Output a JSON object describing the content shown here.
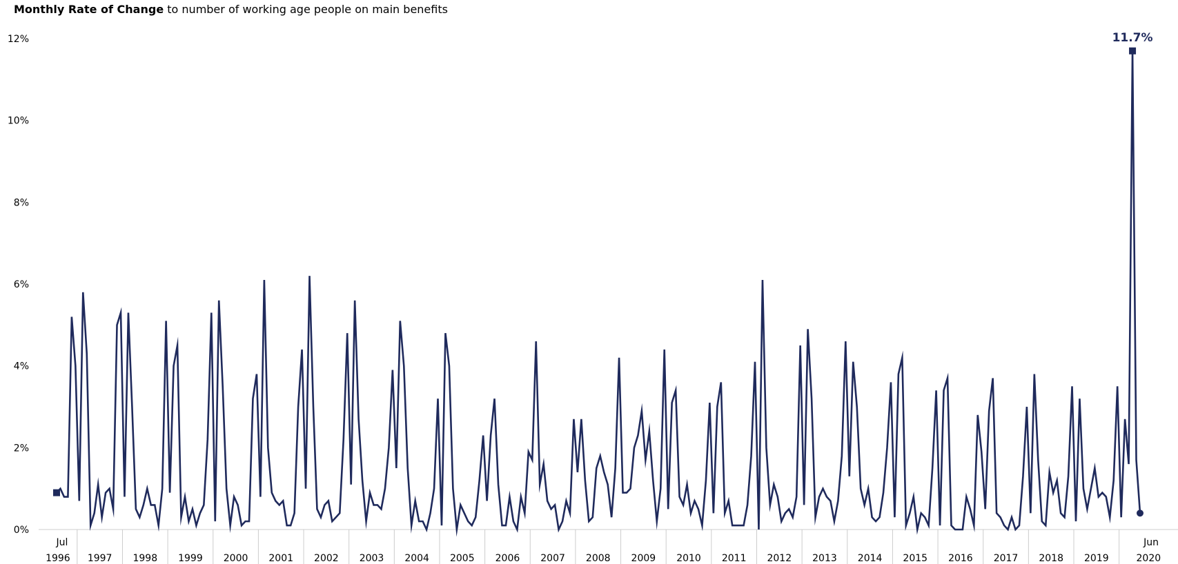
{
  "title": {
    "bold": "Monthly Rate of Change",
    "rest": " to number of working age people on main benefits"
  },
  "colors": {
    "line": "#1f2a5c",
    "grid": "#cccccc",
    "axis_text": "#000000"
  },
  "chart_data": {
    "type": "line",
    "title": "Monthly Rate of Change to number of working age people on main benefits",
    "x_start": "1996-07",
    "x_end": "2020-06",
    "ylim": [
      0,
      12
    ],
    "y_ticks": [
      0,
      2,
      4,
      6,
      8,
      10,
      12
    ],
    "y_tick_labels": [
      "0%",
      "2%",
      "4%",
      "6%",
      "8%",
      "10%",
      "12%"
    ],
    "year_labels": [
      "1996",
      "1997",
      "1998",
      "1999",
      "2000",
      "2001",
      "2002",
      "2003",
      "2004",
      "2005",
      "2006",
      "2007",
      "2008",
      "2009",
      "2010",
      "2011",
      "2012",
      "2013",
      "2014",
      "2015",
      "2016",
      "2017",
      "2018",
      "2019",
      "2020"
    ],
    "start_month_label": "Jul",
    "end_month_label": "Jun",
    "end_annotation": "11.7%",
    "series": [
      {
        "values": [
          0.9,
          1.0,
          0.8,
          0.8,
          5.2,
          4.0,
          0.7,
          5.8,
          4.3,
          0.1,
          0.4,
          1.1,
          0.3,
          0.9,
          1.0,
          0.5,
          5.0,
          5.3,
          0.8,
          5.3,
          3.0,
          0.5,
          0.3,
          0.6,
          1.0,
          0.6,
          0.6,
          0.1,
          1.0,
          5.1,
          0.9,
          4.0,
          4.5,
          0.3,
          0.8,
          0.2,
          0.5,
          0.1,
          0.4,
          0.6,
          2.2,
          5.3,
          0.2,
          5.6,
          3.5,
          1.0,
          0.1,
          0.8,
          0.6,
          0.1,
          0.2,
          0.2,
          3.2,
          3.8,
          0.8,
          6.1,
          2.0,
          0.9,
          0.7,
          0.6,
          0.7,
          0.1,
          0.1,
          0.4,
          3.0,
          4.4,
          1.0,
          6.2,
          3.0,
          0.5,
          0.3,
          0.6,
          0.7,
          0.2,
          0.3,
          0.4,
          2.2,
          4.8,
          1.1,
          5.6,
          2.7,
          1.2,
          0.2,
          0.9,
          0.6,
          0.6,
          0.5,
          1.0,
          2.0,
          3.9,
          1.5,
          5.1,
          4.0,
          1.5,
          0.1,
          0.7,
          0.2,
          0.2,
          0.0,
          0.4,
          1.0,
          3.2,
          0.1,
          4.8,
          4.0,
          1.0,
          0.0,
          0.6,
          0.4,
          0.2,
          0.1,
          0.3,
          1.2,
          2.3,
          0.7,
          2.3,
          3.2,
          1.1,
          0.1,
          0.1,
          0.8,
          0.2,
          0.0,
          0.8,
          0.4,
          1.9,
          1.7,
          4.6,
          1.1,
          1.6,
          0.7,
          0.5,
          0.6,
          0.0,
          0.2,
          0.7,
          0.4,
          2.7,
          1.4,
          2.7,
          1.2,
          0.2,
          0.3,
          1.5,
          1.8,
          1.4,
          1.1,
          0.3,
          1.5,
          4.2,
          0.9,
          0.9,
          1.0,
          2.0,
          2.3,
          2.9,
          1.7,
          2.4,
          1.2,
          0.2,
          1.0,
          4.4,
          0.5,
          3.1,
          3.4,
          0.8,
          0.6,
          1.1,
          0.4,
          0.7,
          0.5,
          0.1,
          1.2,
          3.1,
          0.4,
          3.0,
          3.6,
          0.4,
          0.7,
          0.1,
          0.1,
          0.1,
          0.1,
          0.6,
          1.8,
          4.1,
          0.0,
          6.1,
          2.0,
          0.6,
          1.1,
          0.8,
          0.2,
          0.4,
          0.5,
          0.3,
          0.8,
          4.5,
          0.6,
          4.9,
          3.2,
          0.3,
          0.8,
          1.0,
          0.8,
          0.7,
          0.2,
          0.7,
          1.8,
          4.6,
          1.3,
          4.1,
          3.0,
          1.0,
          0.6,
          1.0,
          0.3,
          0.2,
          0.3,
          0.9,
          2.0,
          3.6,
          0.3,
          3.8,
          4.2,
          0.1,
          0.4,
          0.8,
          0.0,
          0.4,
          0.3,
          0.1,
          1.5,
          3.4,
          0.1,
          3.4,
          3.7,
          0.1,
          0.0,
          0.0,
          0.0,
          0.8,
          0.5,
          0.1,
          2.8,
          1.9,
          0.5,
          2.9,
          3.7,
          0.4,
          0.3,
          0.1,
          0.0,
          0.3,
          0.0,
          0.1,
          1.3,
          3.0,
          0.4,
          3.8,
          1.7,
          0.2,
          0.1,
          1.4,
          0.9,
          1.2,
          0.4,
          0.3,
          1.3,
          3.5,
          0.2,
          3.2,
          1.0,
          0.5,
          1.0,
          1.5,
          0.8,
          0.9,
          0.8,
          0.3,
          1.2,
          3.5,
          0.3,
          2.7,
          1.6,
          11.7,
          1.7,
          0.4
        ]
      }
    ]
  }
}
